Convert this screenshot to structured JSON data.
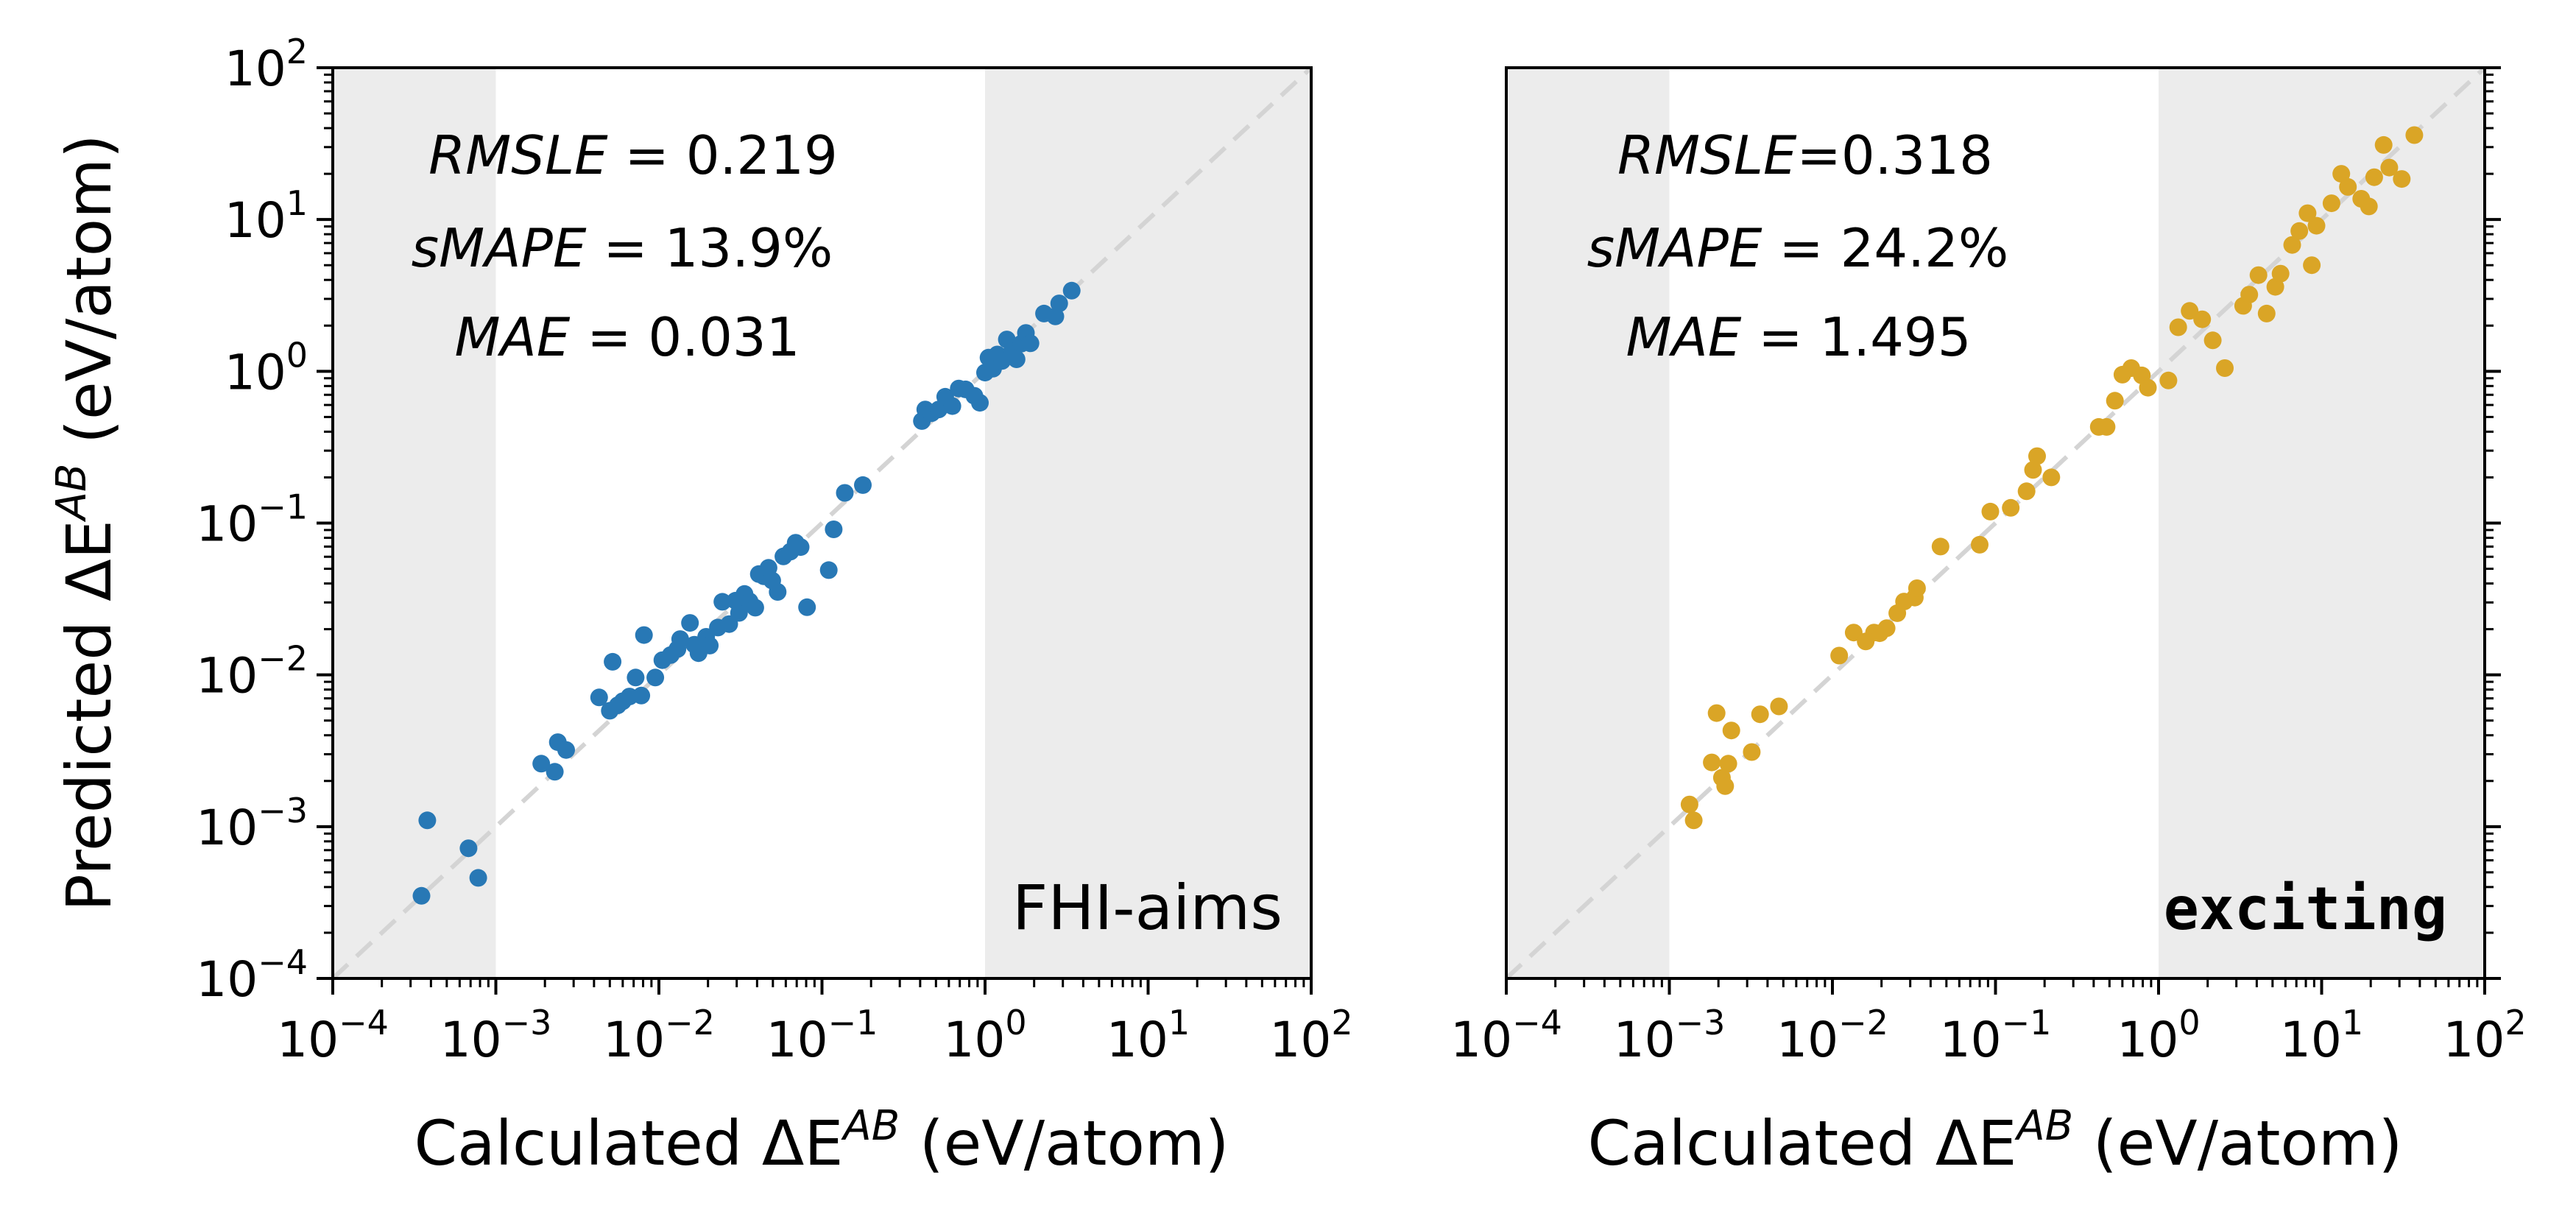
{
  "chart_data": [
    {
      "type": "scatter",
      "panel_label": "FHI-aims",
      "ylabel_main": "Predicted ΔE",
      "ylabel_sup": "AB",
      "ylabel_unit": " (eV/atom)",
      "xlabel_main": "Calculated ΔE",
      "xlabel_sup": "AB",
      "xlabel_unit": " (eV/atom)",
      "xscale": "log",
      "yscale": "log",
      "xlim": [
        0.0001,
        100
      ],
      "ylim": [
        0.0001,
        100
      ],
      "tick_base": "10",
      "xtick_exponents": [
        "−4",
        "−3",
        "−2",
        "−1",
        "0",
        "1",
        "2"
      ],
      "ytick_exponents": [
        "−4",
        "−3",
        "−2",
        "−1",
        "0",
        "1",
        "2"
      ],
      "shaded_regions": [
        [
          0.0001,
          0.001
        ],
        [
          1,
          100
        ]
      ],
      "reference_line": "y = x",
      "marker_color": "#2878b5",
      "metrics": [
        {
          "name": "RMSLE",
          "value": "0.219"
        },
        {
          "name": "sMAPE",
          "value": "13.9%"
        },
        {
          "name": "MAE",
          "value": "0.031"
        }
      ],
      "points": [
        [
          0.00035,
          0.00035
        ],
        [
          0.00038,
          0.0011
        ],
        [
          0.00068,
          0.00072
        ],
        [
          0.00078,
          0.00046
        ],
        [
          0.0019,
          0.0026
        ],
        [
          0.0023,
          0.0023
        ],
        [
          0.0024,
          0.0036
        ],
        [
          0.0027,
          0.0032
        ],
        [
          0.0043,
          0.0071
        ],
        [
          0.005,
          0.0058
        ],
        [
          0.0052,
          0.0122
        ],
        [
          0.0056,
          0.0063
        ],
        [
          0.006,
          0.0067
        ],
        [
          0.0066,
          0.0072
        ],
        [
          0.0072,
          0.0096
        ],
        [
          0.0078,
          0.0073
        ],
        [
          0.0081,
          0.0183
        ],
        [
          0.0095,
          0.0096
        ],
        [
          0.0105,
          0.0125
        ],
        [
          0.0118,
          0.0135
        ],
        [
          0.013,
          0.0148
        ],
        [
          0.0135,
          0.0172
        ],
        [
          0.0155,
          0.022
        ],
        [
          0.0165,
          0.0158
        ],
        [
          0.0175,
          0.0139
        ],
        [
          0.0195,
          0.0178
        ],
        [
          0.0205,
          0.0156
        ],
        [
          0.023,
          0.0205
        ],
        [
          0.0245,
          0.0303
        ],
        [
          0.027,
          0.0216
        ],
        [
          0.0295,
          0.0308
        ],
        [
          0.031,
          0.0256
        ],
        [
          0.0335,
          0.0341
        ],
        [
          0.036,
          0.0305
        ],
        [
          0.039,
          0.0277
        ],
        [
          0.041,
          0.0461
        ],
        [
          0.044,
          0.0446
        ],
        [
          0.047,
          0.0507
        ],
        [
          0.0495,
          0.0418
        ],
        [
          0.0535,
          0.0352
        ],
        [
          0.058,
          0.0603
        ],
        [
          0.064,
          0.0648
        ],
        [
          0.069,
          0.0742
        ],
        [
          0.074,
          0.0695
        ],
        [
          0.081,
          0.0279
        ],
        [
          0.11,
          0.049
        ],
        [
          0.118,
          0.0909
        ],
        [
          0.138,
          0.158
        ],
        [
          0.178,
          0.178
        ],
        [
          0.41,
          0.47
        ],
        [
          0.43,
          0.56
        ],
        [
          0.47,
          0.53
        ],
        [
          0.52,
          0.56
        ],
        [
          0.57,
          0.68
        ],
        [
          0.63,
          0.59
        ],
        [
          0.69,
          0.77
        ],
        [
          0.76,
          0.76
        ],
        [
          0.86,
          0.69
        ],
        [
          0.93,
          0.62
        ],
        [
          1.0,
          0.98
        ],
        [
          1.05,
          1.23
        ],
        [
          1.12,
          1.04
        ],
        [
          1.19,
          1.29
        ],
        [
          1.27,
          1.17
        ],
        [
          1.36,
          1.62
        ],
        [
          1.46,
          1.35
        ],
        [
          1.56,
          1.2
        ],
        [
          1.67,
          1.52
        ],
        [
          1.78,
          1.79
        ],
        [
          1.9,
          1.53
        ],
        [
          2.3,
          2.4
        ],
        [
          2.7,
          2.3
        ],
        [
          2.85,
          2.8
        ],
        [
          3.4,
          3.4
        ]
      ]
    },
    {
      "type": "scatter",
      "panel_label": "exciting",
      "ylabel_main": "",
      "ylabel_sup": "",
      "ylabel_unit": "",
      "xlabel_main": "Calculated ΔE",
      "xlabel_sup": "AB",
      "xlabel_unit": " (eV/atom)",
      "xscale": "log",
      "yscale": "log",
      "xlim": [
        0.0001,
        100
      ],
      "ylim": [
        0.0001,
        100
      ],
      "tick_base": "10",
      "xtick_exponents": [
        "−4",
        "−3",
        "−2",
        "−1",
        "0",
        "1",
        "2"
      ],
      "shaded_regions": [
        [
          0.0001,
          0.001
        ],
        [
          1,
          100
        ]
      ],
      "reference_line": "y = x",
      "marker_color": "#daa526",
      "metrics": [
        {
          "name": "RMSLE",
          "value": "0.318"
        },
        {
          "name": "sMAPE",
          "value": "24.2%"
        },
        {
          "name": "MAE",
          "value": "1.495"
        }
      ],
      "points": [
        [
          0.00133,
          0.0014
        ],
        [
          0.00141,
          0.0011
        ],
        [
          0.00182,
          0.00265
        ],
        [
          0.00195,
          0.0056
        ],
        [
          0.0021,
          0.0021
        ],
        [
          0.0022,
          0.00185
        ],
        [
          0.0023,
          0.0026
        ],
        [
          0.0024,
          0.0043
        ],
        [
          0.0032,
          0.0031
        ],
        [
          0.0036,
          0.0055
        ],
        [
          0.0047,
          0.0062
        ],
        [
          0.011,
          0.0134
        ],
        [
          0.0135,
          0.019
        ],
        [
          0.016,
          0.0166
        ],
        [
          0.018,
          0.019
        ],
        [
          0.0195,
          0.0188
        ],
        [
          0.0215,
          0.0203
        ],
        [
          0.025,
          0.0255
        ],
        [
          0.0275,
          0.0304
        ],
        [
          0.032,
          0.0323
        ],
        [
          0.033,
          0.0372
        ],
        [
          0.046,
          0.07
        ],
        [
          0.08,
          0.072
        ],
        [
          0.093,
          0.119
        ],
        [
          0.124,
          0.126
        ],
        [
          0.155,
          0.162
        ],
        [
          0.17,
          0.224
        ],
        [
          0.18,
          0.276
        ],
        [
          0.22,
          0.2
        ],
        [
          0.43,
          0.43
        ],
        [
          0.48,
          0.43
        ],
        [
          0.54,
          0.64
        ],
        [
          0.6,
          0.95
        ],
        [
          0.68,
          1.05
        ],
        [
          0.79,
          0.94
        ],
        [
          0.86,
          0.78
        ],
        [
          1.15,
          0.87
        ],
        [
          1.32,
          1.95
        ],
        [
          1.55,
          2.5
        ],
        [
          1.85,
          2.2
        ],
        [
          2.15,
          1.6
        ],
        [
          2.55,
          1.05
        ],
        [
          3.3,
          2.7
        ],
        [
          3.6,
          3.2
        ],
        [
          4.1,
          4.3
        ],
        [
          4.6,
          2.4
        ],
        [
          5.2,
          3.6
        ],
        [
          5.6,
          4.4
        ],
        [
          6.6,
          6.8
        ],
        [
          7.3,
          8.4
        ],
        [
          8.2,
          11
        ],
        [
          8.7,
          5.0
        ],
        [
          9.3,
          9.1
        ],
        [
          11.5,
          12.8
        ],
        [
          13.2,
          20
        ],
        [
          14.5,
          16.4
        ],
        [
          17.5,
          13.7
        ],
        [
          19.5,
          12.2
        ],
        [
          21,
          19
        ],
        [
          24,
          31
        ],
        [
          26,
          22
        ],
        [
          31,
          18.5
        ],
        [
          37,
          36
        ]
      ]
    }
  ]
}
